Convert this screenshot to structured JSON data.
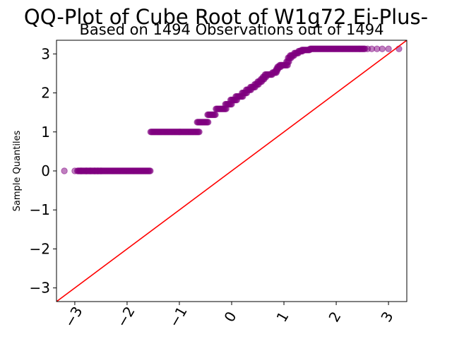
{
  "chart_data": {
    "type": "scatter",
    "title": "QQ-Plot of Cube Root of W1g72 Ei-Plus-",
    "subtitle": "Based on 1494 Observations out of 1494",
    "xlabel": "",
    "ylabel": "Sample Quantiles",
    "xlim": [
      -3.35,
      3.35
    ],
    "ylim": [
      -3.35,
      3.35
    ],
    "xticks": [
      -3,
      -2,
      -1,
      0,
      1,
      2,
      3
    ],
    "yticks": [
      -3,
      -2,
      -1,
      0,
      1,
      2,
      3
    ],
    "xtick_labels": [
      "−3",
      "−2",
      "−1",
      "0",
      "1",
      "2",
      "3"
    ],
    "ytick_labels": [
      "−3",
      "−2",
      "−1",
      "0",
      "1",
      "2",
      "3"
    ],
    "grid": false,
    "point_color": "#800080",
    "line_color": "#ff0000",
    "reference_line": {
      "x": [
        -3.35,
        3.35
      ],
      "y": [
        -3.35,
        3.35
      ]
    },
    "step_segments": [
      {
        "x_start": -2.95,
        "x_end": -1.55,
        "y": 0.0
      },
      {
        "x_start": -1.55,
        "x_end": -0.62,
        "y": 1.0
      },
      {
        "x_start": -0.66,
        "x_end": -0.45,
        "y": 1.25
      },
      {
        "x_start": -0.46,
        "x_end": -0.3,
        "y": 1.44
      },
      {
        "x_start": -0.3,
        "x_end": -0.1,
        "y": 1.59
      },
      {
        "x_start": -0.12,
        "x_end": 0.0,
        "y": 1.71
      },
      {
        "x_start": -0.02,
        "x_end": 0.1,
        "y": 1.82
      },
      {
        "x_start": 0.08,
        "x_end": 0.22,
        "y": 1.91
      },
      {
        "x_start": 0.2,
        "x_end": 0.3,
        "y": 2.0
      },
      {
        "x_start": 0.28,
        "x_end": 0.38,
        "y": 2.08
      },
      {
        "x_start": 0.36,
        "x_end": 0.46,
        "y": 2.15
      },
      {
        "x_start": 0.44,
        "x_end": 0.52,
        "y": 2.22
      },
      {
        "x_start": 0.5,
        "x_end": 0.58,
        "y": 2.29
      },
      {
        "x_start": 0.56,
        "x_end": 0.62,
        "y": 2.35
      },
      {
        "x_start": 0.6,
        "x_end": 0.66,
        "y": 2.41
      },
      {
        "x_start": 0.64,
        "x_end": 0.78,
        "y": 2.47
      },
      {
        "x_start": 0.78,
        "x_end": 0.86,
        "y": 2.52
      },
      {
        "x_start": 0.84,
        "x_end": 0.88,
        "y": 2.57
      },
      {
        "x_start": 0.86,
        "x_end": 0.9,
        "y": 2.62
      },
      {
        "x_start": 0.88,
        "x_end": 0.94,
        "y": 2.67
      },
      {
        "x_start": 0.92,
        "x_end": 1.07,
        "y": 2.71
      },
      {
        "x_start": 1.05,
        "x_end": 1.1,
        "y": 2.8
      },
      {
        "x_start": 1.08,
        "x_end": 1.14,
        "y": 2.9
      },
      {
        "x_start": 1.12,
        "x_end": 1.2,
        "y": 2.96
      },
      {
        "x_start": 1.2,
        "x_end": 1.28,
        "y": 3.02
      },
      {
        "x_start": 1.28,
        "x_end": 1.36,
        "y": 3.07
      },
      {
        "x_start": 1.34,
        "x_end": 1.5,
        "y": 3.1
      },
      {
        "x_start": 1.5,
        "x_end": 2.55,
        "y": 3.13
      }
    ],
    "isolated_points": [
      {
        "x": -3.2,
        "y": 0.0
      },
      {
        "x": -3.0,
        "y": 0.0
      },
      {
        "x": -2.88,
        "y": 0.0
      },
      {
        "x": -2.78,
        "y": 0.0
      },
      {
        "x": -2.7,
        "y": 0.0
      },
      {
        "x": -2.62,
        "y": 0.0
      },
      {
        "x": -2.56,
        "y": 0.0
      },
      {
        "x": -2.5,
        "y": 0.0
      },
      {
        "x": 2.6,
        "y": 3.13
      },
      {
        "x": 2.68,
        "y": 3.13
      },
      {
        "x": 2.78,
        "y": 3.13
      },
      {
        "x": 2.88,
        "y": 3.13
      },
      {
        "x": 3.0,
        "y": 3.13
      },
      {
        "x": 3.2,
        "y": 3.13
      }
    ]
  }
}
